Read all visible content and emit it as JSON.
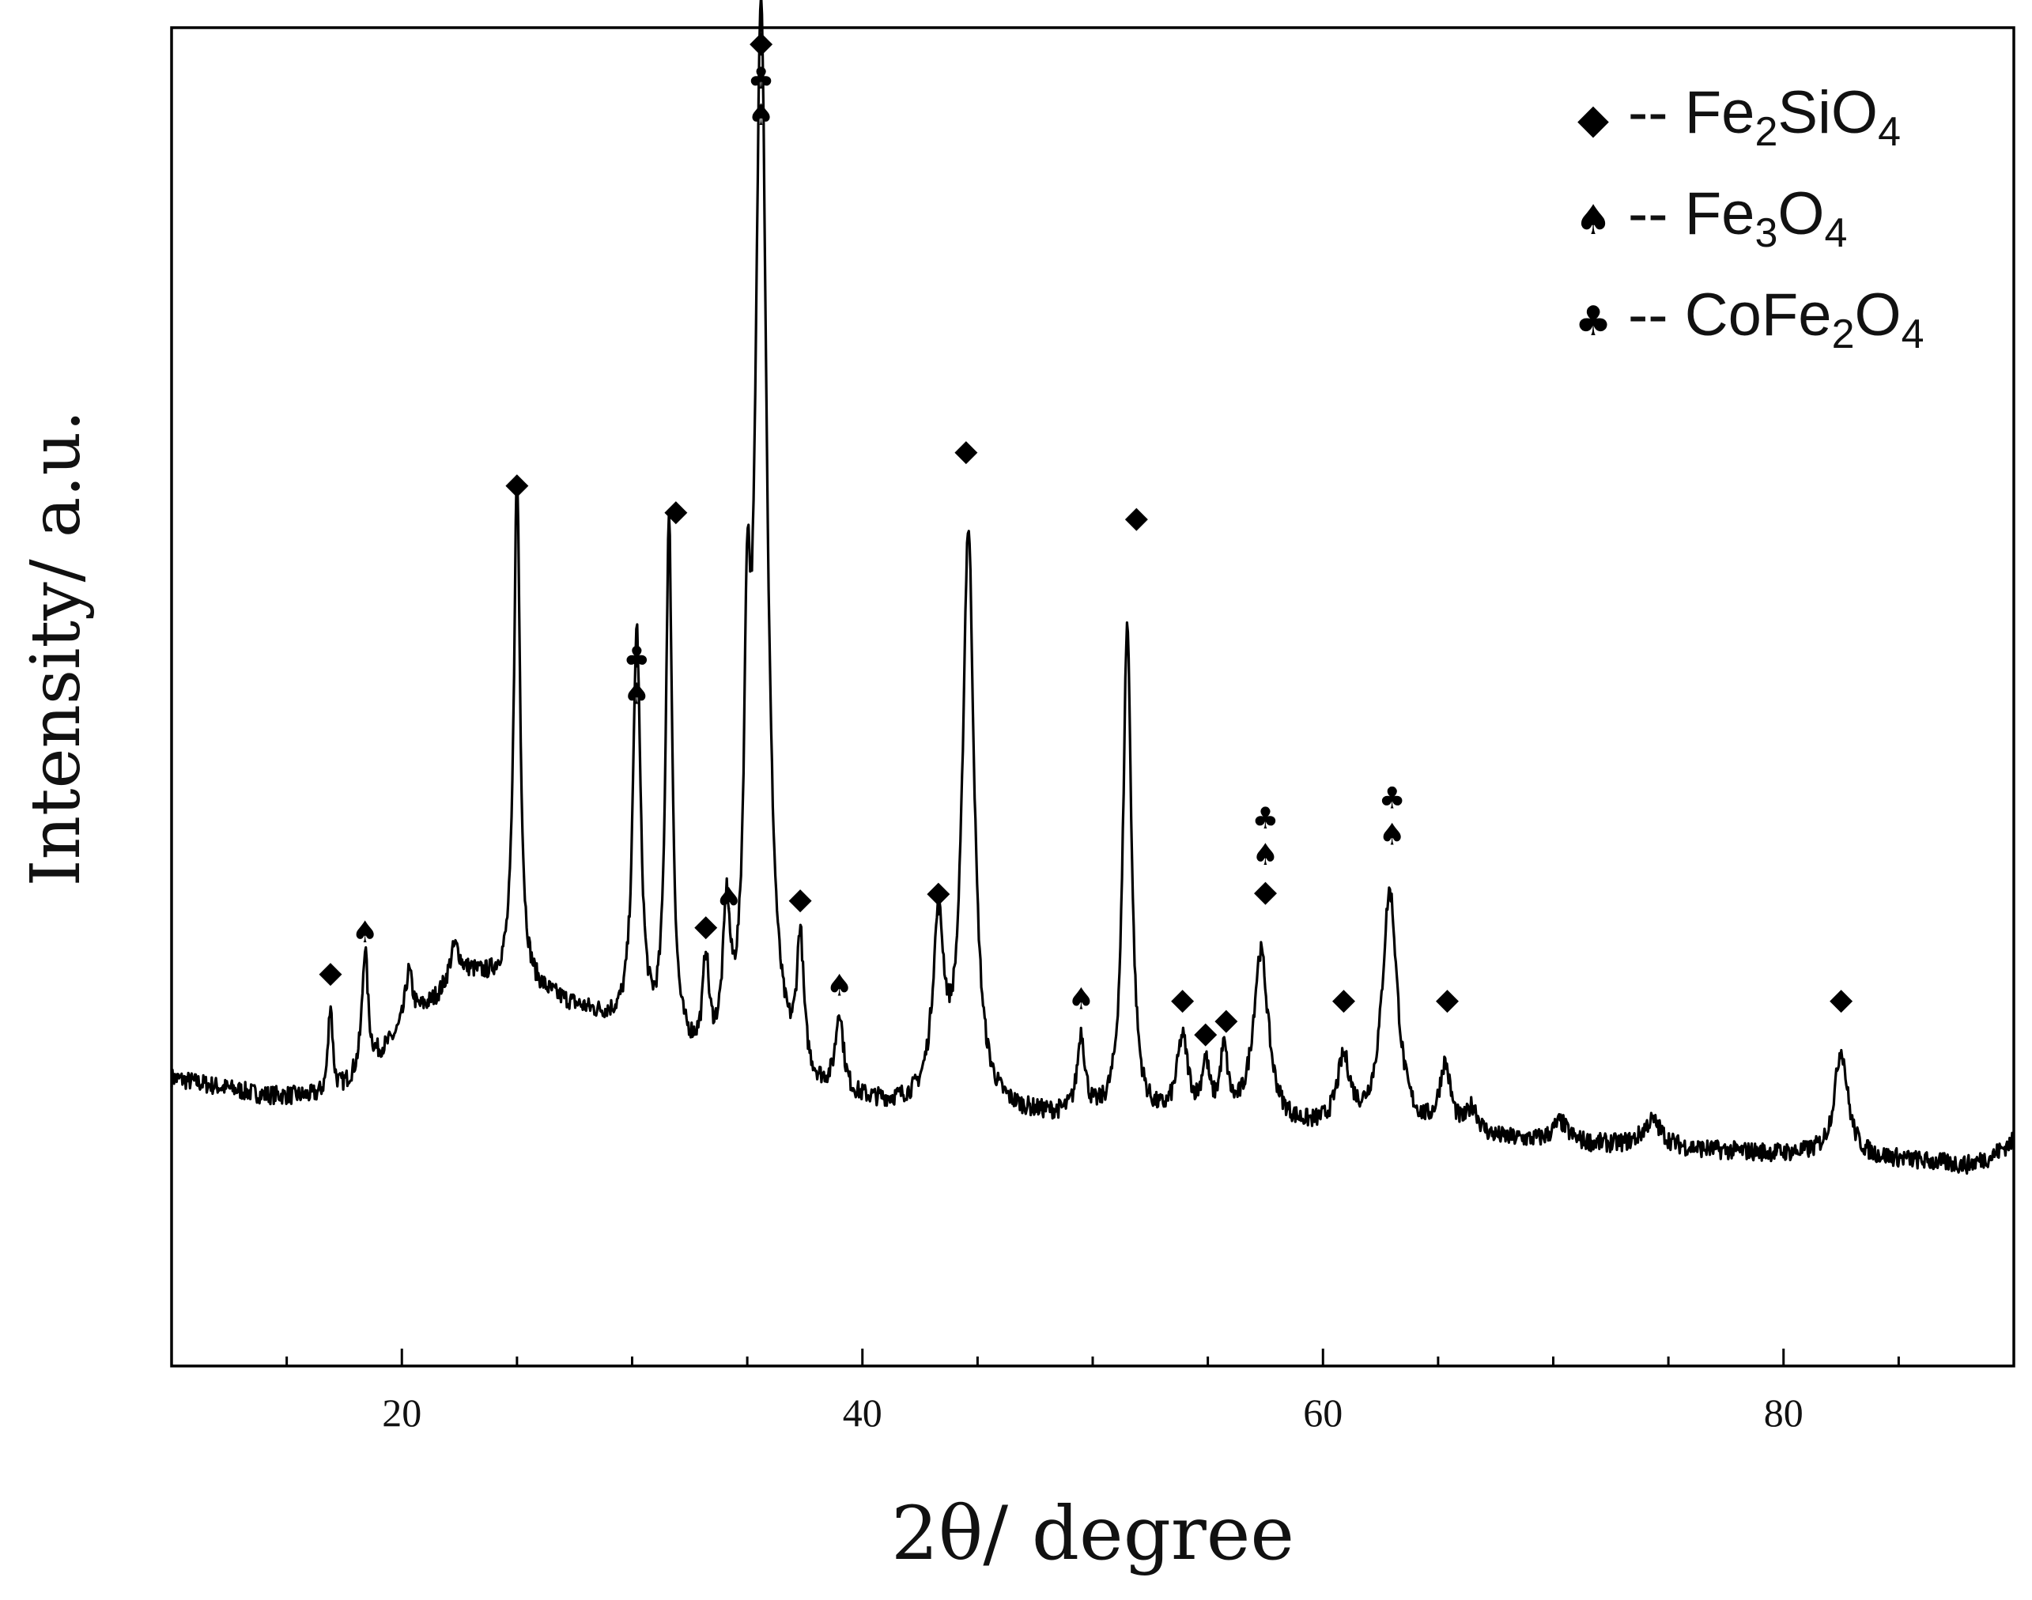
{
  "chart_data": {
    "type": "line",
    "title": "",
    "xlabel": "2θ/ degree",
    "ylabel": "Intensity/ a.u.",
    "xlim": [
      10,
      90
    ],
    "ylim": [
      0,
      100
    ],
    "x_ticks": [
      20,
      40,
      60,
      80
    ],
    "y_ticks": [],
    "grid": false,
    "legend_position": "top-right",
    "legend": [
      {
        "symbol": "◆",
        "dash": "--",
        "formula": "Fe2SiO4",
        "parts": [
          [
            "Fe",
            ""
          ],
          [
            "2",
            "sub"
          ],
          [
            "SiO",
            ""
          ],
          [
            "4",
            "sub"
          ]
        ]
      },
      {
        "symbol": "♠",
        "dash": "--",
        "formula": "Fe3O4",
        "parts": [
          [
            "Fe",
            ""
          ],
          [
            "3",
            "sub"
          ],
          [
            "O",
            ""
          ],
          [
            "4",
            "sub"
          ]
        ]
      },
      {
        "symbol": "♣",
        "dash": "--",
        "formula": "CoFe2O4",
        "parts": [
          [
            "CoFe",
            ""
          ],
          [
            "2",
            "sub"
          ],
          [
            "O",
            ""
          ],
          [
            "4",
            "sub"
          ]
        ]
      }
    ],
    "series": [
      {
        "line_color": "#000000",
        "baseline": [
          [
            10,
            21.5
          ],
          [
            14,
            20.2
          ],
          [
            17,
            20
          ],
          [
            19,
            23
          ],
          [
            21,
            26.5
          ],
          [
            23,
            29
          ],
          [
            25,
            28.5
          ],
          [
            27,
            27
          ],
          [
            29,
            25.5
          ],
          [
            31,
            23.5
          ],
          [
            33,
            22
          ],
          [
            35,
            21
          ],
          [
            38,
            19.8
          ],
          [
            41,
            19.2
          ],
          [
            45,
            18.8
          ],
          [
            50,
            18.2
          ],
          [
            55,
            17.8
          ],
          [
            60,
            17.4
          ],
          [
            65,
            17.0
          ],
          [
            70,
            16.6
          ],
          [
            75,
            16.2
          ],
          [
            80,
            15.8
          ],
          [
            85,
            15.4
          ],
          [
            88,
            15.0
          ],
          [
            89,
            15.6
          ],
          [
            90,
            16.8
          ]
        ],
        "peaks": [
          {
            "x": 16.9,
            "height": 7,
            "width": 0.12
          },
          {
            "x": 18.4,
            "height": 9,
            "width": 0.15
          },
          {
            "x": 20.3,
            "height": 4,
            "width": 0.2
          },
          {
            "x": 22.3,
            "height": 3,
            "width": 0.3
          },
          {
            "x": 25.0,
            "height": 38,
            "width": 0.16
          },
          {
            "x": 30.2,
            "height": 30,
            "width": 0.2
          },
          {
            "x": 31.6,
            "height": 39,
            "width": 0.17
          },
          {
            "x": 33.2,
            "height": 7,
            "width": 0.15
          },
          {
            "x": 34.1,
            "height": 10,
            "width": 0.18
          },
          {
            "x": 35.0,
            "height": 25,
            "width": 0.16
          },
          {
            "x": 35.6,
            "height": 80,
            "width": 0.3
          },
          {
            "x": 37.3,
            "height": 10,
            "width": 0.18
          },
          {
            "x": 39.0,
            "height": 6,
            "width": 0.2
          },
          {
            "x": 43.3,
            "height": 13,
            "width": 0.3
          },
          {
            "x": 44.6,
            "height": 43,
            "width": 0.3
          },
          {
            "x": 49.5,
            "height": 6,
            "width": 0.2
          },
          {
            "x": 51.5,
            "height": 37,
            "width": 0.22
          },
          {
            "x": 53.9,
            "height": 6,
            "width": 0.3
          },
          {
            "x": 54.9,
            "height": 4,
            "width": 0.2
          },
          {
            "x": 55.7,
            "height": 5,
            "width": 0.2
          },
          {
            "x": 57.3,
            "height": 13,
            "width": 0.4
          },
          {
            "x": 60.9,
            "height": 5,
            "width": 0.35
          },
          {
            "x": 62.9,
            "height": 18,
            "width": 0.4
          },
          {
            "x": 65.3,
            "height": 5,
            "width": 0.3
          },
          {
            "x": 66.5,
            "height": 2,
            "width": 0.3
          },
          {
            "x": 70.3,
            "height": 1.5,
            "width": 0.4
          },
          {
            "x": 74.3,
            "height": 2,
            "width": 0.5
          },
          {
            "x": 82.5,
            "height": 8,
            "width": 0.35
          }
        ]
      }
    ],
    "annotations": [
      {
        "x": 16.9,
        "y": 29.5,
        "symbols": [
          "◆"
        ]
      },
      {
        "x": 18.4,
        "y": 32.5,
        "symbols": [
          "♠"
        ]
      },
      {
        "x": 25.0,
        "y": 66,
        "symbols": [
          "◆"
        ]
      },
      {
        "x": 30.2,
        "y": 53,
        "symbols": [
          "♣",
          "♠"
        ]
      },
      {
        "x": 31.9,
        "y": 64,
        "symbols": [
          "◆"
        ]
      },
      {
        "x": 33.2,
        "y": 33,
        "symbols": [
          "◆"
        ]
      },
      {
        "x": 34.2,
        "y": 35,
        "symbols": [
          "♠"
        ]
      },
      {
        "x": 35.6,
        "y": 99,
        "symbols": [
          "◆",
          "♣",
          "♠"
        ]
      },
      {
        "x": 37.3,
        "y": 35,
        "symbols": [
          "◆"
        ]
      },
      {
        "x": 39.0,
        "y": 28.5,
        "symbols": [
          "♠"
        ]
      },
      {
        "x": 43.3,
        "y": 35.5,
        "symbols": [
          "◆"
        ]
      },
      {
        "x": 44.5,
        "y": 68.5,
        "symbols": [
          "◆"
        ]
      },
      {
        "x": 49.5,
        "y": 27.5,
        "symbols": [
          "♠"
        ]
      },
      {
        "x": 51.9,
        "y": 63.5,
        "symbols": [
          "◆"
        ]
      },
      {
        "x": 53.9,
        "y": 27.5,
        "symbols": [
          "◆"
        ]
      },
      {
        "x": 54.9,
        "y": 25,
        "symbols": [
          "◆"
        ]
      },
      {
        "x": 55.8,
        "y": 26,
        "symbols": [
          "◆"
        ]
      },
      {
        "x": 57.5,
        "y": 41,
        "symbols": [
          "♣",
          "♠",
          "◆"
        ]
      },
      {
        "x": 60.9,
        "y": 27.5,
        "symbols": [
          "◆"
        ]
      },
      {
        "x": 63.0,
        "y": 42.5,
        "symbols": [
          "♣",
          "♠"
        ]
      },
      {
        "x": 65.4,
        "y": 27.5,
        "symbols": [
          "◆"
        ]
      },
      {
        "x": 82.5,
        "y": 27.5,
        "symbols": [
          "◆"
        ]
      }
    ]
  }
}
